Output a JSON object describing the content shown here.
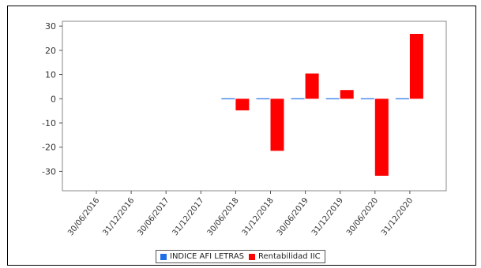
{
  "chart_data": {
    "type": "bar",
    "categories": [
      "30/06/2016",
      "31/12/2016",
      "30/06/2017",
      "31/12/2017",
      "30/06/2018",
      "31/12/2018",
      "30/06/2019",
      "31/12/2019",
      "30/06/2020",
      "31/12/2020"
    ],
    "series": [
      {
        "name": "INDICE AFI LETRAS",
        "color": "#1f6fe5",
        "values": [
          null,
          null,
          null,
          null,
          -0.3,
          0,
          0.1,
          0.1,
          -0.2,
          -0.3
        ]
      },
      {
        "name": "Rentabilidad IIC",
        "color": "#ff0000",
        "values": [
          null,
          null,
          null,
          null,
          -4.8,
          -21.5,
          10.4,
          3.6,
          -31.8,
          26.8
        ]
      }
    ],
    "yticks": [
      30,
      20,
      10,
      0,
      -10,
      -20,
      -30
    ],
    "ylim": [
      -38,
      32
    ],
    "legend_position": "bottom-center",
    "grid": false
  }
}
